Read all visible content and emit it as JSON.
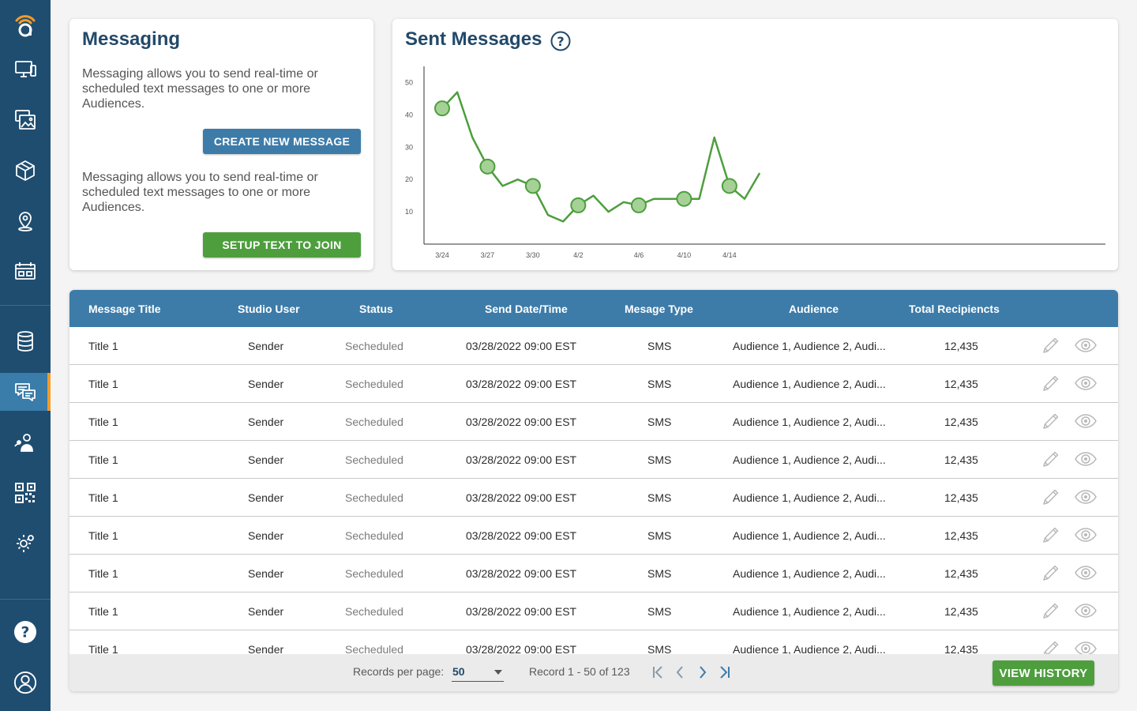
{
  "sidebar": {
    "items": [
      {
        "icon": "brand-logo-icon"
      },
      {
        "icon": "monitor-icon"
      },
      {
        "icon": "media-gallery-icon"
      },
      {
        "icon": "package-icon"
      },
      {
        "icon": "location-pin-icon"
      },
      {
        "icon": "calendar-screen-icon"
      },
      {
        "icon": "database-icon"
      },
      {
        "icon": "messaging-icon",
        "active": true
      },
      {
        "icon": "audience-user-icon"
      },
      {
        "icon": "qr-code-icon"
      },
      {
        "icon": "settings-gear-icon"
      },
      {
        "icon": "help-icon"
      },
      {
        "icon": "account-avatar-icon"
      }
    ]
  },
  "messaging": {
    "title": "Messaging",
    "description_1": "Messaging allows you to send real-time or scheduled text messages to one or more Audiences.",
    "create_button": "CREATE NEW MESSAGE",
    "description_2": "Messaging allows you to send real-time or scheduled text messages to one or more Audiences.",
    "text_to_join_button": "SETUP TEXT TO JOIN"
  },
  "chart": {
    "title": "Sent Messages",
    "help_icon": "question-circle-icon"
  },
  "chart_data": {
    "type": "line",
    "title": "Sent Messages",
    "xlabel": "",
    "ylabel": "",
    "y_ticks": [
      10,
      20,
      30,
      40,
      50
    ],
    "x_tick_labels": [
      "3/24",
      "3/27",
      "3/30",
      "4/2",
      "4/6",
      "4/10",
      "4/14"
    ],
    "ylim": [
      0,
      55
    ],
    "grid": false,
    "series": [
      {
        "color": "#4e9e3e",
        "points": [
          {
            "x": 0,
            "y": 42,
            "marker": true
          },
          {
            "x": 1,
            "y": 47
          },
          {
            "x": 2,
            "y": 33
          },
          {
            "x": 3,
            "y": 24,
            "marker": true
          },
          {
            "x": 4,
            "y": 18
          },
          {
            "x": 5,
            "y": 20
          },
          {
            "x": 6,
            "y": 18,
            "marker": true
          },
          {
            "x": 7,
            "y": 9
          },
          {
            "x": 8,
            "y": 7
          },
          {
            "x": 9,
            "y": 12,
            "marker": true
          },
          {
            "x": 10,
            "y": 15
          },
          {
            "x": 11,
            "y": 10
          },
          {
            "x": 12,
            "y": 13
          },
          {
            "x": 13,
            "y": 12,
            "marker": true
          },
          {
            "x": 14,
            "y": 14
          },
          {
            "x": 15,
            "y": 14
          },
          {
            "x": 16,
            "y": 14,
            "marker": true
          },
          {
            "x": 17,
            "y": 14
          },
          {
            "x": 18,
            "y": 33
          },
          {
            "x": 19,
            "y": 18,
            "marker": true
          },
          {
            "x": 20,
            "y": 14
          },
          {
            "x": 21,
            "y": 22
          }
        ]
      }
    ]
  },
  "table": {
    "columns": [
      "Message Title",
      "Studio User",
      "Status",
      "Send Date/Time",
      "Mesage Type",
      "Audience",
      "Total Recipiencts"
    ],
    "rows": [
      {
        "title": "Title 1",
        "user": "Sender",
        "status": "Secheduled",
        "datetime": "03/28/2022 09:00 EST",
        "type": "SMS",
        "audience": "Audience 1, Audience 2, Audi...",
        "recipients": "12,435"
      },
      {
        "title": "Title 1",
        "user": "Sender",
        "status": "Secheduled",
        "datetime": "03/28/2022 09:00 EST",
        "type": "SMS",
        "audience": "Audience 1, Audience 2, Audi...",
        "recipients": "12,435"
      },
      {
        "title": "Title 1",
        "user": "Sender",
        "status": "Secheduled",
        "datetime": "03/28/2022 09:00 EST",
        "type": "SMS",
        "audience": "Audience 1, Audience 2, Audi...",
        "recipients": "12,435"
      },
      {
        "title": "Title 1",
        "user": "Sender",
        "status": "Secheduled",
        "datetime": "03/28/2022 09:00 EST",
        "type": "SMS",
        "audience": "Audience 1, Audience 2, Audi...",
        "recipients": "12,435"
      },
      {
        "title": "Title 1",
        "user": "Sender",
        "status": "Secheduled",
        "datetime": "03/28/2022 09:00 EST",
        "type": "SMS",
        "audience": "Audience 1, Audience 2, Audi...",
        "recipients": "12,435"
      },
      {
        "title": "Title 1",
        "user": "Sender",
        "status": "Secheduled",
        "datetime": "03/28/2022 09:00 EST",
        "type": "SMS",
        "audience": "Audience 1, Audience 2, Audi...",
        "recipients": "12,435"
      },
      {
        "title": "Title 1",
        "user": "Sender",
        "status": "Secheduled",
        "datetime": "03/28/2022 09:00 EST",
        "type": "SMS",
        "audience": "Audience 1, Audience 2, Audi...",
        "recipients": "12,435"
      },
      {
        "title": "Title 1",
        "user": "Sender",
        "status": "Secheduled",
        "datetime": "03/28/2022 09:00 EST",
        "type": "SMS",
        "audience": "Audience 1, Audience 2, Audi...",
        "recipients": "12,435"
      },
      {
        "title": "Title 1",
        "user": "Sender",
        "status": "Secheduled",
        "datetime": "03/28/2022 09:00 EST",
        "type": "SMS",
        "audience": "Audience 1, Audience 2, Audi...",
        "recipients": "12,435"
      }
    ],
    "row_actions": [
      "edit-pencil-icon",
      "view-eye-icon"
    ]
  },
  "footer": {
    "records_per_page_label": "Records per page:",
    "records_per_page_value": "50",
    "record_range": "Record 1 - 50 of 123",
    "view_history_button": "VIEW HISTORY"
  },
  "colors": {
    "sidebar_bg": "#1f4d70",
    "sidebar_active": "#3a7caa",
    "accent_orange": "#f39c2a",
    "header_blue": "#3d7ca9",
    "green": "#4e9e3e",
    "title_navy": "#22496a"
  }
}
